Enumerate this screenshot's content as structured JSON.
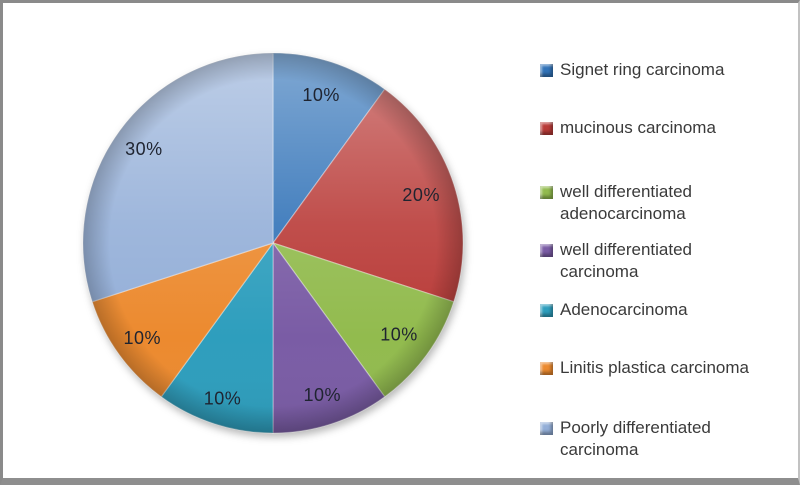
{
  "canvas": {
    "background": "#ffffff",
    "frame_border_color": "#8a8a8a",
    "frame_bottom_bar_color": "#8e8e8e"
  },
  "chart_data": {
    "type": "pie",
    "title": "",
    "legend_position": "right",
    "direction": "clockwise",
    "start_angle_deg": 0,
    "grid": false,
    "label_color": "#1f2430",
    "label_radius_factors": [
      0.82,
      0.82,
      0.82,
      0.84,
      0.86,
      0.85,
      0.84
    ],
    "segments": [
      {
        "label": "Signet ring carcinoma",
        "value": 10,
        "percent_label": "10%",
        "color": "#3273b8"
      },
      {
        "label": "mucinous carcinoma",
        "value": 20,
        "percent_label": "20%",
        "color": "#b93b38"
      },
      {
        "label": "well differentiated adenocarcinoma",
        "value": 10,
        "percent_label": "10%",
        "color": "#92bb4e"
      },
      {
        "label": "well differentiated carcinoma",
        "value": 10,
        "percent_label": "10%",
        "color": "#7a5ca5"
      },
      {
        "label": "Adenocarcinoma",
        "value": 10,
        "percent_label": "10%",
        "color": "#2e9ebd"
      },
      {
        "label": "Linitis plastica carcinoma",
        "value": 10,
        "percent_label": "10%",
        "color": "#ec8a2f"
      },
      {
        "label": "Poorly differentiated carcinoma",
        "value": 30,
        "percent_label": "30%",
        "color": "#94afd8"
      }
    ]
  }
}
